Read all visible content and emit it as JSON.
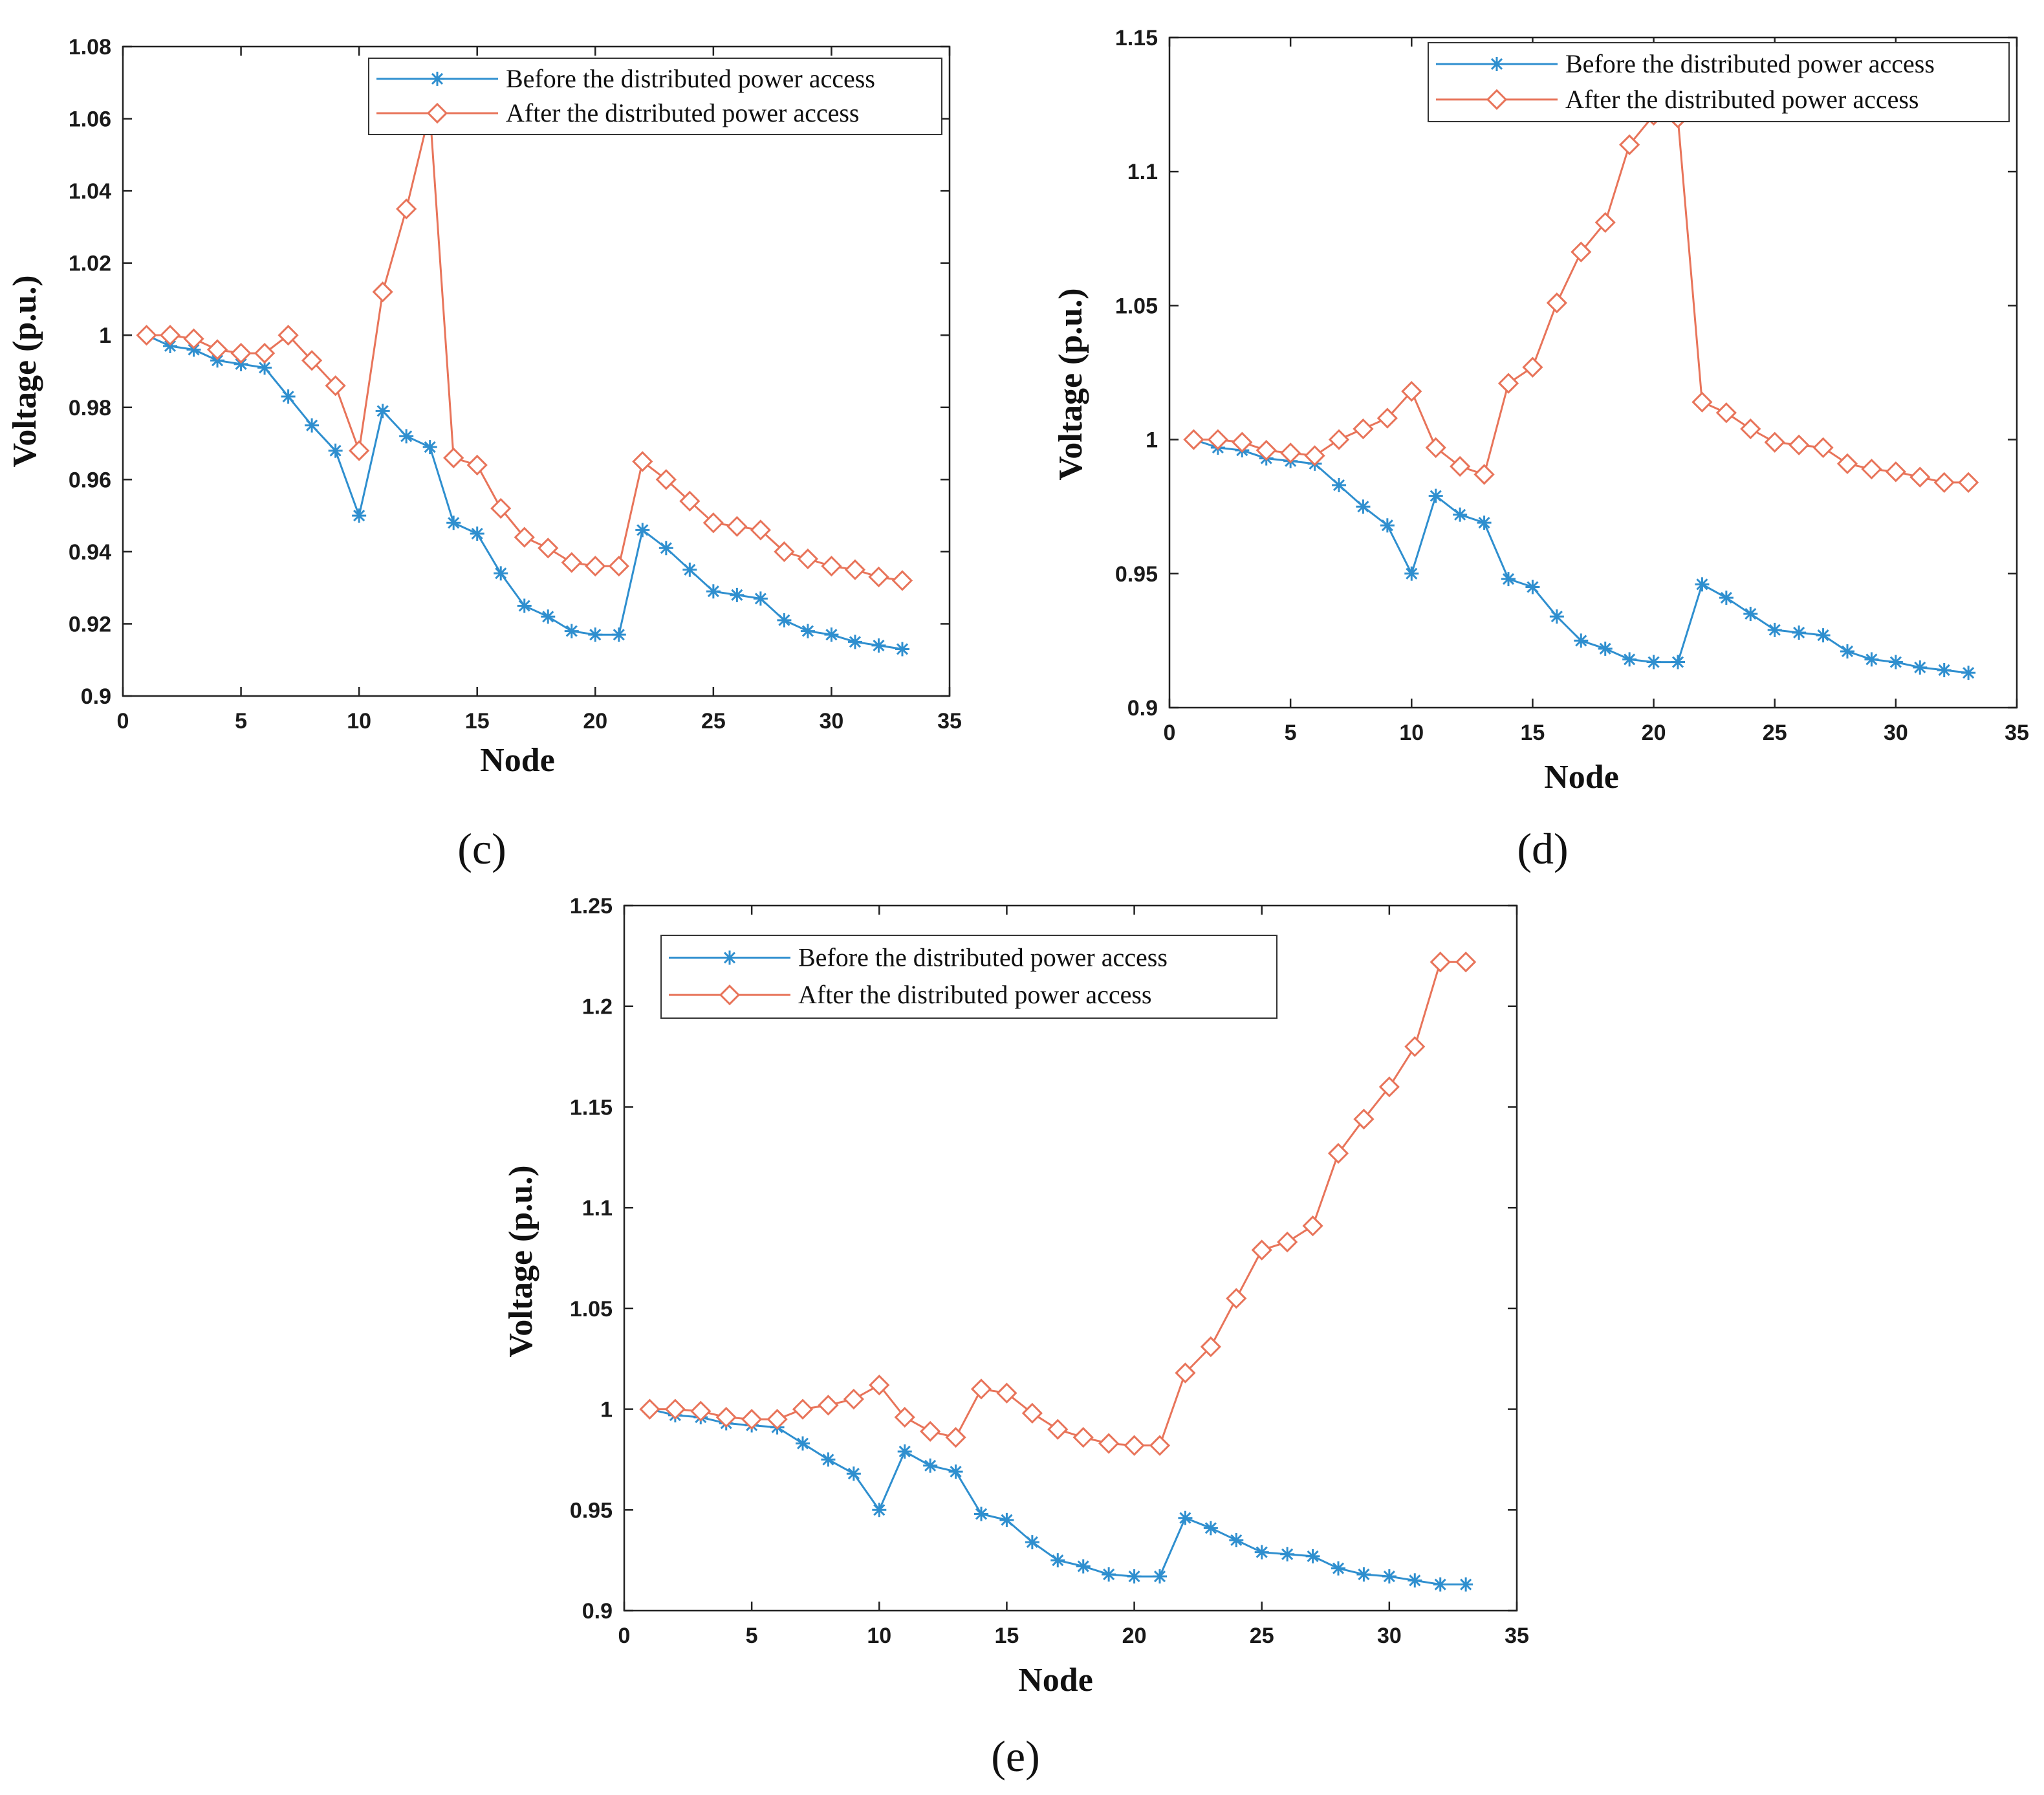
{
  "figure": {
    "captions": [
      "(c)",
      "(d)",
      "(e)"
    ]
  },
  "colors": {
    "before": "#2F8FCF",
    "after": "#E8745A",
    "axis": "#222222",
    "legend_border": "#333333"
  },
  "chart_data": [
    {
      "id": "c",
      "type": "line",
      "caption": "(c)",
      "xlabel": "Node",
      "ylabel": "Voltage (p.u.)",
      "xlim": [
        0,
        35
      ],
      "ylim": [
        0.9,
        1.08
      ],
      "xticks": [
        0,
        5,
        10,
        15,
        20,
        25,
        30,
        35
      ],
      "xtick_labels": [
        "0",
        "5",
        "10",
        "15",
        "20",
        "25",
        "30",
        "35"
      ],
      "yticks": [
        0.9,
        0.92,
        0.94,
        0.96,
        0.98,
        1.0,
        1.02,
        1.04,
        1.06,
        1.08
      ],
      "ytick_labels": [
        "0.9",
        "0.92",
        "0.94",
        "0.96",
        "0.98",
        "1",
        "1.02",
        "1.04",
        "1.06",
        "1.08"
      ],
      "legend_position": "top-right",
      "x": [
        1,
        2,
        3,
        4,
        5,
        6,
        7,
        8,
        9,
        10,
        11,
        12,
        13,
        14,
        15,
        16,
        17,
        18,
        19,
        20,
        21,
        22,
        23,
        24,
        25,
        26,
        27,
        28,
        29,
        30,
        31,
        32,
        33
      ],
      "series": [
        {
          "name": "Before the distributed power access",
          "marker": "asterisk",
          "values": [
            1.0,
            0.997,
            0.996,
            0.993,
            0.992,
            0.991,
            0.983,
            0.975,
            0.968,
            0.95,
            0.979,
            0.972,
            0.969,
            0.948,
            0.945,
            0.934,
            0.925,
            0.922,
            0.918,
            0.917,
            0.917,
            0.946,
            0.941,
            0.935,
            0.929,
            0.928,
            0.927,
            0.921,
            0.918,
            0.917,
            0.915,
            0.914,
            0.913
          ]
        },
        {
          "name": "After the distributed power access",
          "marker": "diamond",
          "values": [
            1.0,
            1.0,
            0.999,
            0.996,
            0.995,
            0.995,
            1.0,
            0.993,
            0.986,
            0.968,
            1.012,
            1.035,
            1.062,
            0.966,
            0.964,
            0.952,
            0.944,
            0.941,
            0.937,
            0.936,
            0.936,
            0.965,
            0.96,
            0.954,
            0.948,
            0.947,
            0.946,
            0.94,
            0.938,
            0.936,
            0.935,
            0.933,
            0.932
          ]
        }
      ]
    },
    {
      "id": "d",
      "type": "line",
      "caption": "(d)",
      "xlabel": "Node",
      "ylabel": "Voltage (p.u.)",
      "xlim": [
        0,
        35
      ],
      "ylim": [
        0.9,
        1.15
      ],
      "xticks": [
        0,
        5,
        10,
        15,
        20,
        25,
        30,
        35
      ],
      "xtick_labels": [
        "0",
        "5",
        "10",
        "15",
        "20",
        "25",
        "30",
        "35"
      ],
      "yticks": [
        0.9,
        0.95,
        1.0,
        1.05,
        1.1,
        1.15
      ],
      "ytick_labels": [
        "0.9",
        "0.95",
        "1",
        "1.05",
        "1.1",
        "1.15"
      ],
      "legend_position": "top-right",
      "x": [
        1,
        2,
        3,
        4,
        5,
        6,
        7,
        8,
        9,
        10,
        11,
        12,
        13,
        14,
        15,
        16,
        17,
        18,
        19,
        20,
        21,
        22,
        23,
        24,
        25,
        26,
        27,
        28,
        29,
        30,
        31,
        32,
        33
      ],
      "series": [
        {
          "name": "Before the distributed power access",
          "marker": "asterisk",
          "values": [
            1.0,
            0.997,
            0.996,
            0.993,
            0.992,
            0.991,
            0.983,
            0.975,
            0.968,
            0.95,
            0.979,
            0.972,
            0.969,
            0.948,
            0.945,
            0.934,
            0.925,
            0.922,
            0.918,
            0.917,
            0.917,
            0.946,
            0.941,
            0.935,
            0.929,
            0.928,
            0.927,
            0.921,
            0.918,
            0.917,
            0.915,
            0.914,
            0.913
          ]
        },
        {
          "name": "After the distributed power access",
          "marker": "diamond",
          "values": [
            1.0,
            1.0,
            0.999,
            0.996,
            0.995,
            0.994,
            1.0,
            1.004,
            1.008,
            1.018,
            0.997,
            0.99,
            0.987,
            1.021,
            1.027,
            1.051,
            1.07,
            1.081,
            1.11,
            1.121,
            1.12,
            1.014,
            1.01,
            1.004,
            0.999,
            0.998,
            0.997,
            0.991,
            0.989,
            0.988,
            0.986,
            0.984,
            0.984
          ]
        }
      ]
    },
    {
      "id": "e",
      "type": "line",
      "caption": "(e)",
      "xlabel": "Node",
      "ylabel": "Voltage (p.u.)",
      "xlim": [
        0,
        35
      ],
      "ylim": [
        0.9,
        1.25
      ],
      "xticks": [
        0,
        5,
        10,
        15,
        20,
        25,
        30,
        35
      ],
      "xtick_labels": [
        "0",
        "5",
        "10",
        "15",
        "20",
        "25",
        "30",
        "35"
      ],
      "yticks": [
        0.9,
        0.95,
        1.0,
        1.05,
        1.1,
        1.15,
        1.2,
        1.25
      ],
      "ytick_labels": [
        "0.9",
        "0.95",
        "1",
        "1.05",
        "1.1",
        "1.15",
        "1.2",
        "1.25"
      ],
      "legend_position": "top-left",
      "x": [
        1,
        2,
        3,
        4,
        5,
        6,
        7,
        8,
        9,
        10,
        11,
        12,
        13,
        14,
        15,
        16,
        17,
        18,
        19,
        20,
        21,
        22,
        23,
        24,
        25,
        26,
        27,
        28,
        29,
        30,
        31,
        32,
        33
      ],
      "series": [
        {
          "name": "Before the distributed power access",
          "marker": "asterisk",
          "values": [
            1.0,
            0.997,
            0.996,
            0.993,
            0.992,
            0.991,
            0.983,
            0.975,
            0.968,
            0.95,
            0.979,
            0.972,
            0.969,
            0.948,
            0.945,
            0.934,
            0.925,
            0.922,
            0.918,
            0.917,
            0.917,
            0.946,
            0.941,
            0.935,
            0.929,
            0.928,
            0.927,
            0.921,
            0.918,
            0.917,
            0.915,
            0.913,
            0.913
          ]
        },
        {
          "name": "After the distributed power access",
          "marker": "diamond",
          "values": [
            1.0,
            1.0,
            0.999,
            0.996,
            0.995,
            0.995,
            1.0,
            1.002,
            1.005,
            1.012,
            0.996,
            0.989,
            0.986,
            1.01,
            1.008,
            0.998,
            0.99,
            0.986,
            0.983,
            0.982,
            0.982,
            1.018,
            1.031,
            1.055,
            1.079,
            1.083,
            1.091,
            1.127,
            1.144,
            1.16,
            1.18,
            1.222,
            1.222
          ]
        }
      ]
    }
  ]
}
